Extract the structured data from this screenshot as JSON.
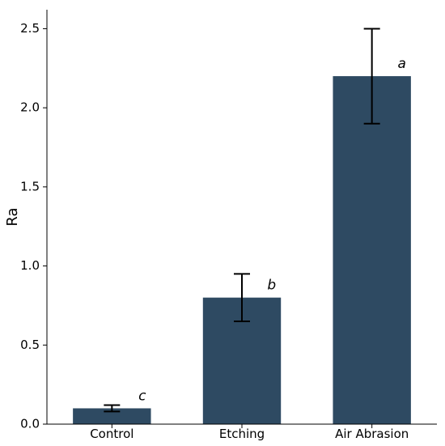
{
  "chart_data": {
    "type": "bar",
    "title": "",
    "xlabel": "",
    "ylabel": "Ra",
    "categories": [
      "Control",
      "Etching",
      "Air Abrasion"
    ],
    "values": [
      0.1,
      0.8,
      2.2
    ],
    "errors": [
      0.02,
      0.15,
      0.3
    ],
    "significance_letters": [
      "c",
      "b",
      "a"
    ],
    "ylim": [
      0,
      2.62
    ],
    "yticks": [
      0.0,
      0.5,
      1.0,
      1.5,
      2.0,
      2.5
    ],
    "ytick_labels": [
      "0.0",
      "0.5",
      "1.0",
      "1.5",
      "2.0",
      "2.5"
    ],
    "grid": false,
    "legend": "none",
    "bar_color": "#2e4a62",
    "errorbar_color": "#000000"
  }
}
